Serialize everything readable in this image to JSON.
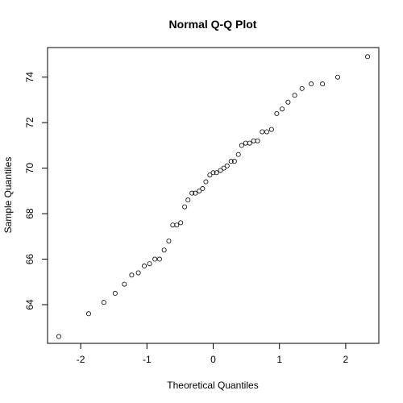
{
  "chart_data": {
    "type": "scatter",
    "title": "Normal Q-Q Plot",
    "xlabel": "Theoretical Quantiles",
    "ylabel": "Sample Quantiles",
    "xlim": [
      -2.5,
      2.5
    ],
    "ylim": [
      62.3,
      75.3
    ],
    "xticks": [
      -2,
      -1,
      0,
      1,
      2
    ],
    "yticks": [
      64,
      66,
      68,
      70,
      72,
      74
    ],
    "grid": false,
    "series": [
      {
        "points": [
          [
            -2.33,
            62.6
          ],
          [
            -1.88,
            63.6
          ],
          [
            -1.65,
            64.1
          ],
          [
            -1.48,
            64.5
          ],
          [
            -1.34,
            64.9
          ],
          [
            -1.23,
            65.3
          ],
          [
            -1.13,
            65.4
          ],
          [
            -1.04,
            65.7
          ],
          [
            -0.96,
            65.8
          ],
          [
            -0.88,
            66.0
          ],
          [
            -0.81,
            66.0
          ],
          [
            -0.74,
            66.4
          ],
          [
            -0.67,
            66.8
          ],
          [
            -0.61,
            67.5
          ],
          [
            -0.55,
            67.5
          ],
          [
            -0.49,
            67.6
          ],
          [
            -0.43,
            68.3
          ],
          [
            -0.38,
            68.6
          ],
          [
            -0.32,
            68.9
          ],
          [
            -0.27,
            68.9
          ],
          [
            -0.21,
            69.0
          ],
          [
            -0.16,
            69.1
          ],
          [
            -0.11,
            69.4
          ],
          [
            -0.05,
            69.7
          ],
          [
            0.0,
            69.8
          ],
          [
            0.05,
            69.8
          ],
          [
            0.11,
            69.9
          ],
          [
            0.16,
            70.0
          ],
          [
            0.21,
            70.1
          ],
          [
            0.27,
            70.3
          ],
          [
            0.32,
            70.3
          ],
          [
            0.38,
            70.6
          ],
          [
            0.43,
            71.0
          ],
          [
            0.49,
            71.1
          ],
          [
            0.55,
            71.1
          ],
          [
            0.61,
            71.2
          ],
          [
            0.67,
            71.2
          ],
          [
            0.74,
            71.6
          ],
          [
            0.81,
            71.6
          ],
          [
            0.88,
            71.7
          ],
          [
            0.96,
            72.4
          ],
          [
            1.04,
            72.6
          ],
          [
            1.13,
            72.9
          ],
          [
            1.23,
            73.2
          ],
          [
            1.34,
            73.5
          ],
          [
            1.48,
            73.7
          ],
          [
            1.65,
            73.7
          ],
          [
            1.88,
            74.0
          ],
          [
            2.33,
            74.9
          ]
        ]
      }
    ]
  }
}
